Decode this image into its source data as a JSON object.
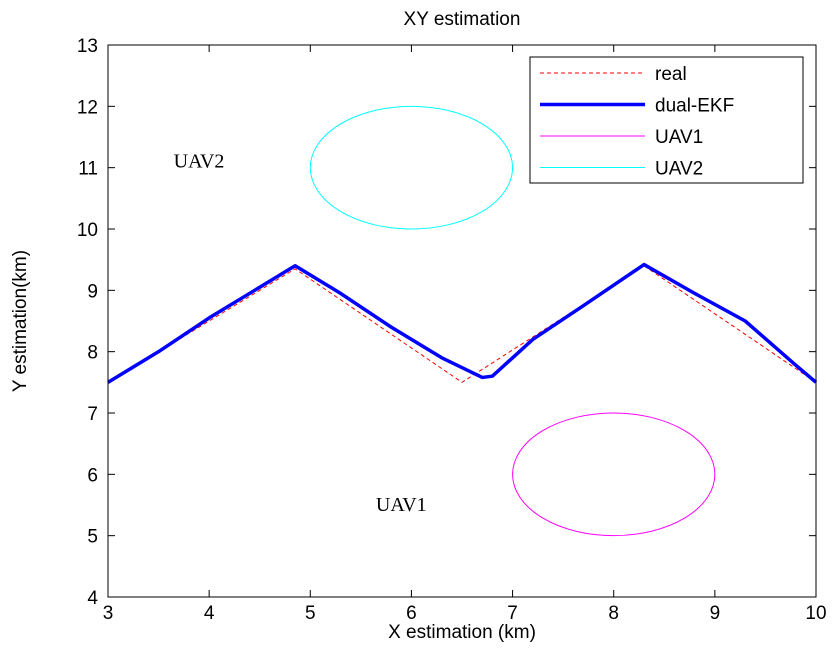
{
  "chart_data": {
    "type": "line",
    "title": "XY estimation",
    "xlabel": "X estimation (km)",
    "ylabel": "Y estimation(km)",
    "xlim": [
      3,
      10
    ],
    "ylim": [
      4,
      13
    ],
    "xticks": [
      "3",
      "4",
      "5",
      "6",
      "7",
      "8",
      "9",
      "10"
    ],
    "yticks": [
      "4",
      "5",
      "6",
      "7",
      "8",
      "9",
      "10",
      "11",
      "12",
      "13"
    ],
    "grid": false,
    "legend_position": "top-right",
    "annotations": [
      {
        "text": "UAV2",
        "x": 3.9,
        "y": 11.0
      },
      {
        "text": "UAV1",
        "x": 5.9,
        "y": 5.4
      }
    ],
    "series": [
      {
        "name": "real",
        "color": "#ff0000",
        "style": "dashed",
        "x": [
          3.0,
          4.85,
          6.5,
          8.3,
          10.0
        ],
        "y": [
          7.5,
          9.35,
          7.5,
          9.4,
          7.5
        ]
      },
      {
        "name": "dual-EKF",
        "color": "#0000ff",
        "style": "solid-thick",
        "x": [
          3.0,
          3.5,
          4.0,
          4.5,
          4.85,
          5.3,
          5.8,
          6.3,
          6.7,
          6.8,
          7.2,
          7.7,
          8.3,
          8.8,
          9.3,
          9.8,
          10.0
        ],
        "y": [
          7.5,
          8.0,
          8.55,
          9.05,
          9.4,
          8.95,
          8.4,
          7.9,
          7.58,
          7.6,
          8.2,
          8.75,
          9.42,
          8.95,
          8.5,
          7.78,
          7.5
        ]
      },
      {
        "name": "UAV1",
        "color": "#ff00ff",
        "style": "solid-thin",
        "shape": "circle",
        "center": [
          8.0,
          6.0
        ],
        "radius": 1.0
      },
      {
        "name": "UAV2",
        "color": "#00ffff",
        "style": "solid-thin",
        "shape": "circle",
        "center": [
          6.0,
          11.0
        ],
        "radius": 1.0
      }
    ]
  }
}
